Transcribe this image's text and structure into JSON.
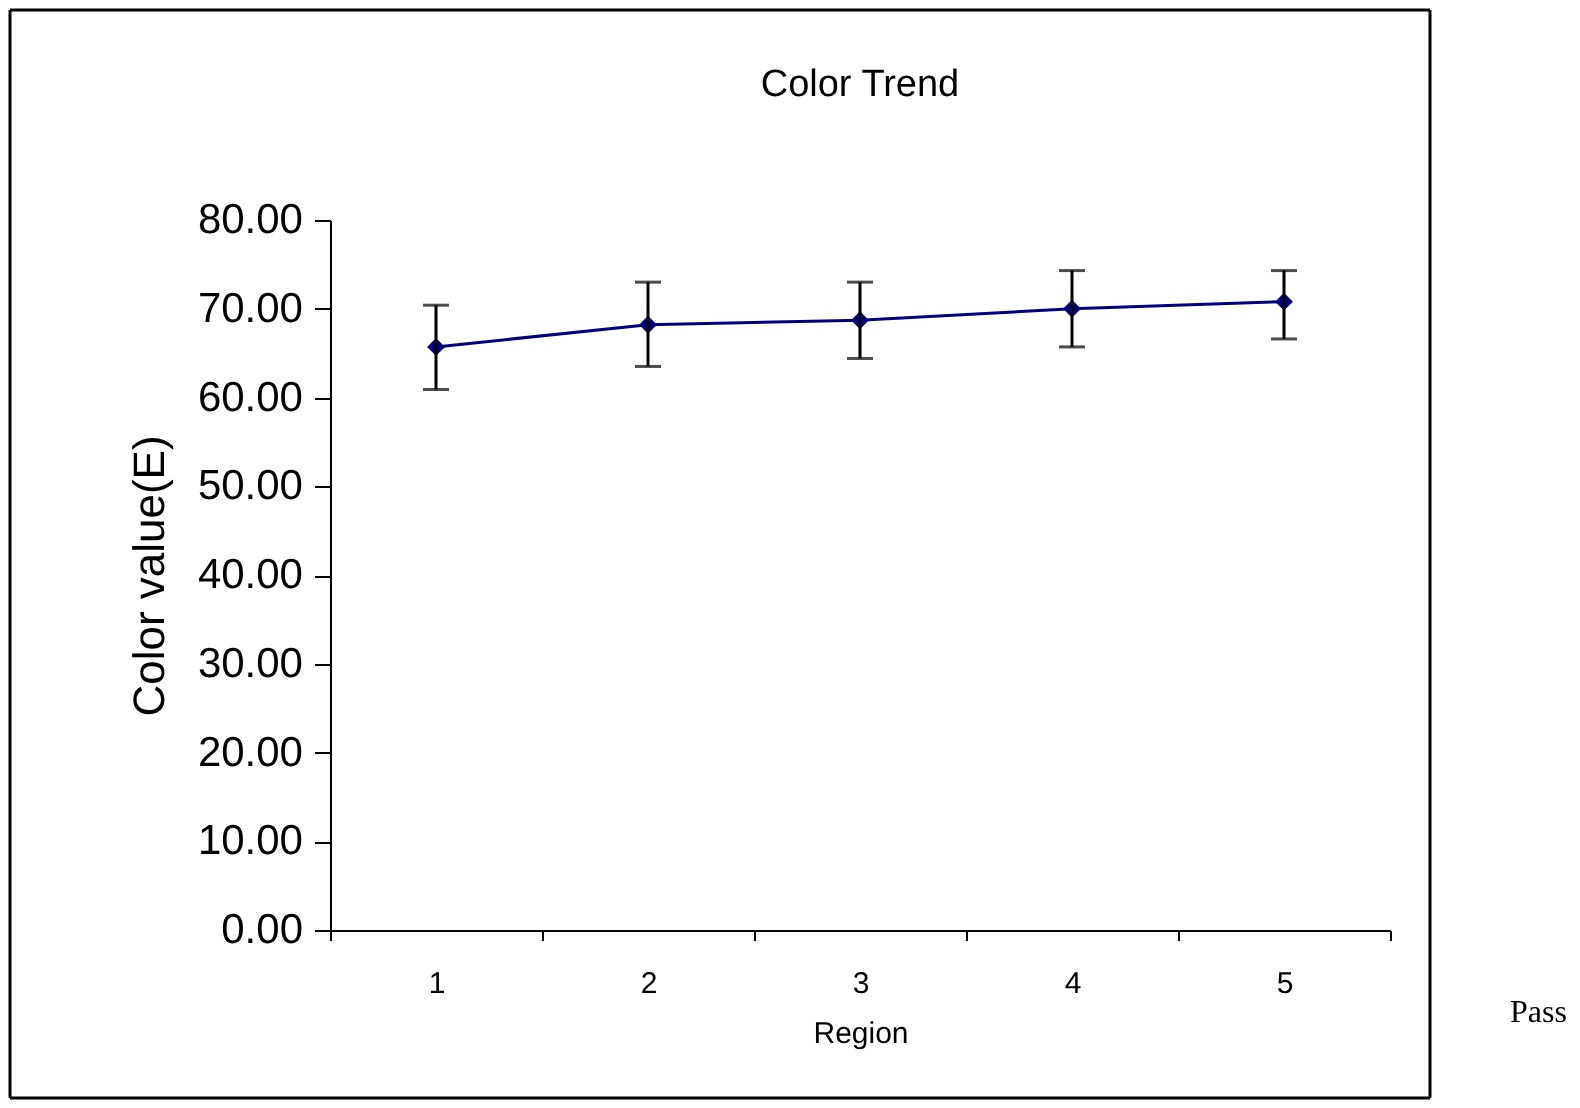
{
  "chart_data": {
    "type": "line",
    "title": "Color Trend",
    "xlabel": "Region",
    "ylabel": "Color value(E)",
    "categories": [
      "1",
      "2",
      "3",
      "4",
      "5"
    ],
    "series": [
      {
        "color": "#000080",
        "values": [
          65.7,
          68.2,
          68.7,
          70.0,
          70.8
        ],
        "errors": [
          [
            60.9,
            70.4
          ],
          [
            63.5,
            73.0
          ],
          [
            64.4,
            73.0
          ],
          [
            65.7,
            74.3
          ],
          [
            66.6,
            74.3
          ]
        ]
      }
    ],
    "ylim": [
      0,
      80
    ],
    "yticks": [
      {
        "value": 0,
        "label": "0.00"
      },
      {
        "value": 10,
        "label": "10.00"
      },
      {
        "value": 20,
        "label": "20.00"
      },
      {
        "value": 30,
        "label": "30.00"
      },
      {
        "value": 40,
        "label": "40.00"
      },
      {
        "value": 50,
        "label": "50.00"
      },
      {
        "value": 60,
        "label": "60.00"
      },
      {
        "value": 70,
        "label": "70.00"
      },
      {
        "value": 80,
        "label": "80.00"
      }
    ],
    "annotations": [
      "Pass"
    ],
    "marker": "diamond",
    "line_style": "solid",
    "grid": false
  }
}
